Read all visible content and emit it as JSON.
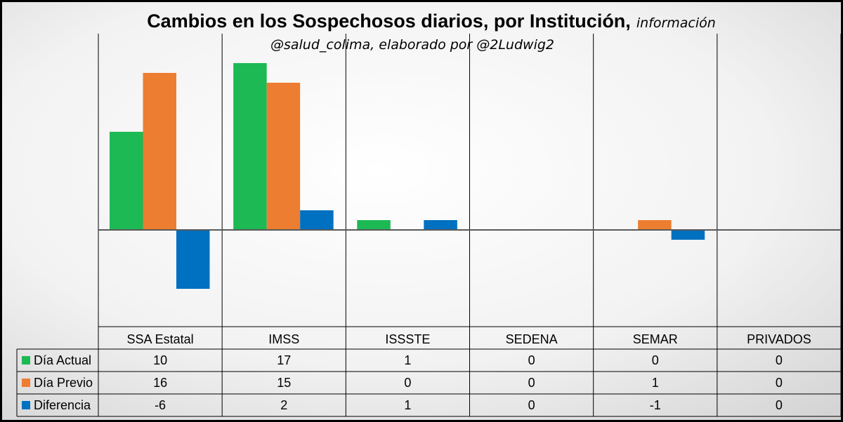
{
  "chart_data": {
    "type": "bar",
    "title": "Cambios en los Sospechosos diarios, por Institución,",
    "title_suffix": "información",
    "subtitle": "@salud_colima, elaborado por @2Ludwig2",
    "categories": [
      "SSA Estatal",
      "IMSS",
      "ISSSTE",
      "SEDENA",
      "SEMAR",
      "PRIVADOS"
    ],
    "series": [
      {
        "name": "Día Actual",
        "color": "#1DB954",
        "values": [
          10,
          17,
          1,
          0,
          0,
          0
        ]
      },
      {
        "name": "Día Previo",
        "color": "#ED7D31",
        "values": [
          16,
          15,
          0,
          0,
          1,
          0
        ]
      },
      {
        "name": "Diferencia",
        "color": "#0070C0",
        "values": [
          -6,
          2,
          1,
          0,
          -1,
          0
        ]
      }
    ],
    "ylim": [
      -10,
      18
    ],
    "grid": false,
    "legend": "table"
  }
}
